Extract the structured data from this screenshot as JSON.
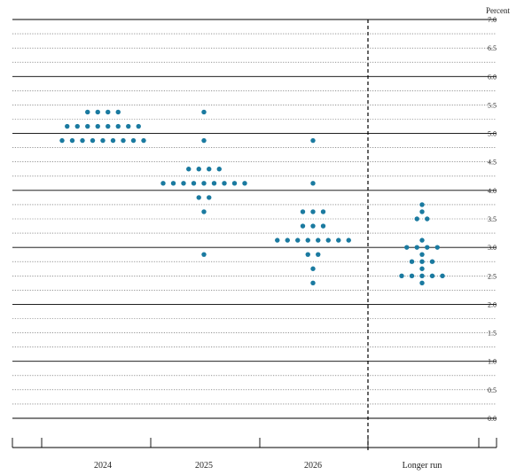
{
  "chart_data": {
    "type": "scatter",
    "ylabel": "Percent",
    "ylim": [
      0,
      7
    ],
    "y_ticks": [
      "0.0",
      "0.5",
      "1.0",
      "1.5",
      "2.0",
      "2.5",
      "3.0",
      "3.5",
      "4.0",
      "4.5",
      "5.0",
      "5.5",
      "6.0",
      "6.5",
      "7.0"
    ],
    "y_tick_values": [
      0,
      0.5,
      1,
      1.5,
      2,
      2.5,
      3,
      3.5,
      4,
      4.5,
      5,
      5.5,
      6,
      6.5,
      7
    ],
    "grid": true,
    "categories": [
      "2024",
      "2025",
      "2026",
      "Longer run"
    ],
    "dot_color": "#1a7aa0",
    "series": [
      {
        "category": "2024",
        "points": [
          {
            "y": 5.375,
            "count": 4
          },
          {
            "y": 5.125,
            "count": 8
          },
          {
            "y": 4.875,
            "count": 9
          }
        ]
      },
      {
        "category": "2025",
        "points": [
          {
            "y": 5.375,
            "count": 1
          },
          {
            "y": 4.875,
            "count": 1
          },
          {
            "y": 4.375,
            "count": 4
          },
          {
            "y": 4.125,
            "count": 9
          },
          {
            "y": 3.875,
            "count": 2
          },
          {
            "y": 3.625,
            "count": 1
          },
          {
            "y": 2.875,
            "count": 1
          }
        ]
      },
      {
        "category": "2026",
        "points": [
          {
            "y": 4.875,
            "count": 1
          },
          {
            "y": 4.125,
            "count": 1
          },
          {
            "y": 3.625,
            "count": 3
          },
          {
            "y": 3.375,
            "count": 3
          },
          {
            "y": 3.125,
            "count": 8
          },
          {
            "y": 2.875,
            "count": 2
          },
          {
            "y": 2.625,
            "count": 1
          },
          {
            "y": 2.375,
            "count": 1
          }
        ]
      },
      {
        "category": "Longer run",
        "points": [
          {
            "y": 3.75,
            "count": 1
          },
          {
            "y": 3.625,
            "count": 1
          },
          {
            "y": 3.5,
            "count": 2
          },
          {
            "y": 3.125,
            "count": 1
          },
          {
            "y": 3.0,
            "count": 4
          },
          {
            "y": 2.875,
            "count": 1
          },
          {
            "y": 2.75,
            "count": 3
          },
          {
            "y": 2.625,
            "count": 1
          },
          {
            "y": 2.5,
            "count": 5
          },
          {
            "y": 2.375,
            "count": 1
          }
        ]
      }
    ]
  }
}
